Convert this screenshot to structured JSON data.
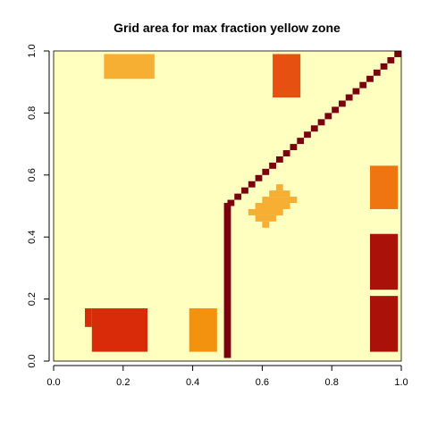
{
  "chart_data": {
    "type": "heatmap",
    "title": "Grid area for max fraction yellow zone",
    "xlabel": "",
    "ylabel": "",
    "xlim": [
      0,
      1
    ],
    "ylim": [
      0,
      1
    ],
    "x_ticks": [
      "0.0",
      "0.2",
      "0.4",
      "0.6",
      "0.8",
      "1.0"
    ],
    "y_ticks": [
      "0.0",
      "0.2",
      "0.4",
      "0.6",
      "0.8",
      "1.0"
    ],
    "grid": false,
    "colors": {
      "background": "#FFFFBF",
      "level_light_orange": "#F6AE33",
      "level_orange": "#F2920E",
      "level_dark_orange": "#EF7412",
      "level_red_orange": "#E65010",
      "level_red": "#D92B0A",
      "level_dark_red": "#AA1108",
      "level_darkest": "#7A0010"
    },
    "regions": [
      {
        "id": "rect-top-left",
        "color": "level_light_orange",
        "x": [
          0.145,
          0.29
        ],
        "y": [
          0.91,
          0.99
        ]
      },
      {
        "id": "rect-top-mid",
        "color": "level_red_orange",
        "x": [
          0.63,
          0.71
        ],
        "y": [
          0.85,
          0.99
        ]
      },
      {
        "id": "rect-right-upper",
        "color": "level_dark_orange",
        "x": [
          0.91,
          0.99
        ],
        "y": [
          0.49,
          0.63
        ]
      },
      {
        "id": "rect-right-mid",
        "color": "level_dark_red",
        "x": [
          0.91,
          0.99
        ],
        "y": [
          0.23,
          0.41
        ]
      },
      {
        "id": "rect-right-lower",
        "color": "level_dark_red",
        "x": [
          0.91,
          0.99
        ],
        "y": [
          0.03,
          0.21
        ]
      },
      {
        "id": "rect-bottom-left-a",
        "color": "level_red",
        "x": [
          0.11,
          0.27
        ],
        "y": [
          0.03,
          0.17
        ]
      },
      {
        "id": "rect-bottom-left-b",
        "color": "level_red",
        "x": [
          0.09,
          0.11
        ],
        "y": [
          0.11,
          0.17
        ]
      },
      {
        "id": "rect-bottom-mid",
        "color": "level_orange",
        "x": [
          0.39,
          0.47
        ],
        "y": [
          0.03,
          0.17
        ]
      },
      {
        "id": "vertical-bar",
        "color": "level_darkest",
        "x": [
          0.49,
          0.51
        ],
        "y": [
          0.01,
          0.51
        ]
      },
      {
        "id": "blob-row-1",
        "color": "level_light_orange",
        "x": [
          0.64,
          0.66
        ],
        "y": [
          0.55,
          0.57
        ]
      },
      {
        "id": "blob-row-2",
        "color": "level_light_orange",
        "x": [
          0.62,
          0.68
        ],
        "y": [
          0.53,
          0.55
        ]
      },
      {
        "id": "blob-row-3",
        "color": "level_light_orange",
        "x": [
          0.6,
          0.7
        ],
        "y": [
          0.51,
          0.53
        ]
      },
      {
        "id": "blob-row-4",
        "color": "level_light_orange",
        "x": [
          0.58,
          0.68
        ],
        "y": [
          0.49,
          0.51
        ]
      },
      {
        "id": "blob-row-5",
        "color": "level_light_orange",
        "x": [
          0.56,
          0.66
        ],
        "y": [
          0.47,
          0.49
        ]
      },
      {
        "id": "blob-row-6",
        "color": "level_light_orange",
        "x": [
          0.58,
          0.64
        ],
        "y": [
          0.45,
          0.47
        ]
      },
      {
        "id": "blob-row-7",
        "color": "level_light_orange",
        "x": [
          0.6,
          0.62
        ],
        "y": [
          0.43,
          0.45
        ]
      }
    ],
    "diagonal_cells": {
      "color": "level_darkest",
      "cell_size": 0.02,
      "x_start": 0.51,
      "y_start": 0.51,
      "x_end": 0.99,
      "y_end": 0.99,
      "count": 25
    }
  }
}
